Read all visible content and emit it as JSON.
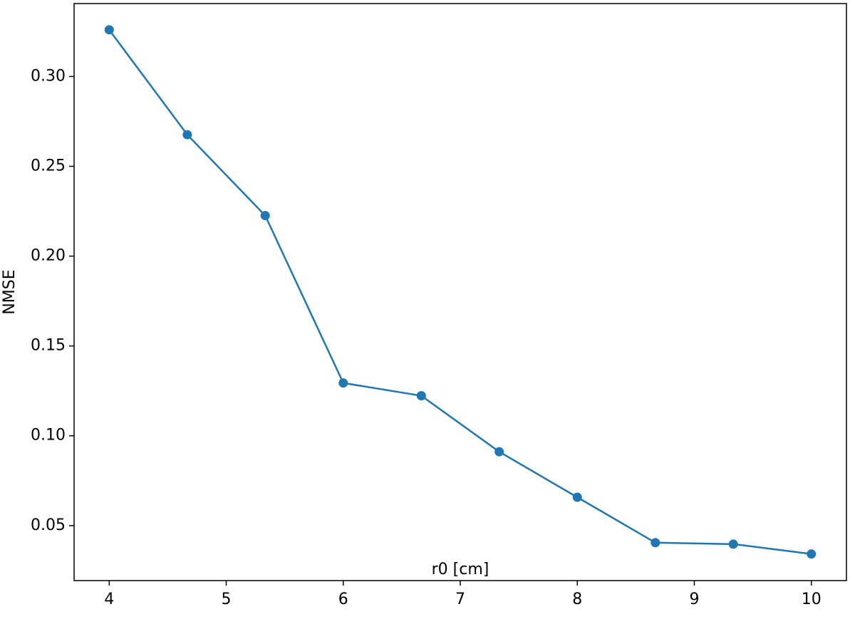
{
  "chart_data": {
    "type": "line",
    "x_label": "r0 [cm]",
    "y_label": "NMSE",
    "x": [
      4,
      4.667,
      5.333,
      6,
      6.667,
      7.333,
      8,
      8.667,
      9.333,
      10
    ],
    "series": [
      {
        "color": "#1f77b4",
        "values": [
          0.326,
          0.2676,
          0.2226,
          0.1294,
          0.1223,
          0.0911,
          0.0658,
          0.0405,
          0.0397,
          0.0342
        ]
      }
    ],
    "xlim": [
      3.7,
      10.3
    ],
    "xticks": [
      4,
      5,
      6,
      7,
      8,
      9,
      10
    ],
    "ylim": [
      0.0194,
      0.3406
    ],
    "yticks": [
      {
        "value": 0.05,
        "label": "0.05"
      },
      {
        "value": 0.1,
        "label": "0.10"
      },
      {
        "value": 0.15,
        "label": "0.15"
      },
      {
        "value": 0.2,
        "label": "0.20"
      },
      {
        "value": 0.25,
        "label": "0.25"
      },
      {
        "value": 0.3,
        "label": "0.30"
      }
    ],
    "grid": false
  }
}
